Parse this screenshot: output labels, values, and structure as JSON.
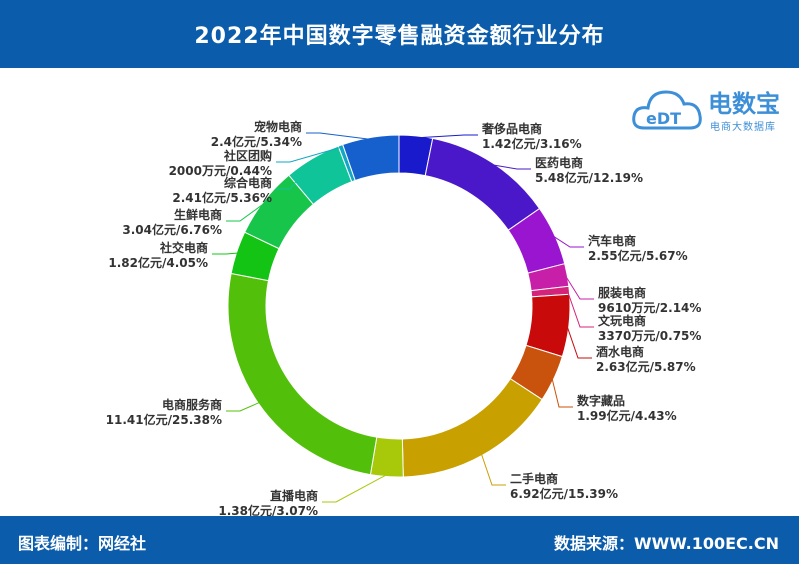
{
  "header": {
    "title": "2022年中国数字零售融资金额行业分布"
  },
  "footer": {
    "left": "图表编制：网经社",
    "right": "数据来源：WWW.100EC.CN"
  },
  "logo": {
    "mark": "eDT",
    "brand": "电数宝",
    "sub": "电商大数据库"
  },
  "colors": {
    "header_bg": "#0b5cab",
    "logo_blue": "#3d8fd8"
  },
  "chart_data": {
    "type": "pie",
    "title": "2022年中国数字零售融资金额行业分布",
    "unit": "亿元",
    "slices": [
      {
        "name": "奢侈品电商",
        "label": "1.42亿元/3.16%",
        "value": 1.42,
        "percent": 3.16,
        "color": "#1a1acd"
      },
      {
        "name": "医药电商",
        "label": "5.48亿元/12.19%",
        "value": 5.48,
        "percent": 12.19,
        "color": "#4a18c8"
      },
      {
        "name": "汽车电商",
        "label": "2.55亿元/5.67%",
        "value": 2.55,
        "percent": 5.67,
        "color": "#9a15cf"
      },
      {
        "name": "服装电商",
        "label": "9610万元/2.14%",
        "value": 0.961,
        "percent": 2.14,
        "color": "#c71fa8"
      },
      {
        "name": "文玩电商",
        "label": "3370万元/0.75%",
        "value": 0.337,
        "percent": 0.75,
        "color": "#d4237a"
      },
      {
        "name": "酒水电商",
        "label": "2.63亿元/5.87%",
        "value": 2.63,
        "percent": 5.87,
        "color": "#c80a0a"
      },
      {
        "name": "数字藏品",
        "label": "1.99亿元/4.43%",
        "value": 1.99,
        "percent": 4.43,
        "color": "#c9520c"
      },
      {
        "name": "二手电商",
        "label": "6.92亿元/15.39%",
        "value": 6.92,
        "percent": 15.39,
        "color": "#c8a000"
      },
      {
        "name": "直播电商",
        "label": "1.38亿元/3.07%",
        "value": 1.38,
        "percent": 3.07,
        "color": "#a8c80a"
      },
      {
        "name": "电商服务商",
        "label": "11.41亿元/25.38%",
        "value": 11.41,
        "percent": 25.38,
        "color": "#52c00a"
      },
      {
        "name": "社交电商",
        "label": "1.82亿元/4.05%",
        "value": 1.82,
        "percent": 4.05,
        "color": "#14c414"
      },
      {
        "name": "生鲜电商",
        "label": "3.04亿元/6.76%",
        "value": 3.04,
        "percent": 6.76,
        "color": "#17c54a"
      },
      {
        "name": "综合电商",
        "label": "2.41亿元/5.36%",
        "value": 2.41,
        "percent": 5.36,
        "color": "#10c49a"
      },
      {
        "name": "社区团购",
        "label": "2000万元/0.44%",
        "value": 0.2,
        "percent": 0.44,
        "color": "#12a7c4"
      },
      {
        "name": "宠物电商",
        "label": "2.4亿元/5.34%",
        "value": 2.4,
        "percent": 5.34,
        "color": "#1560cc"
      }
    ]
  }
}
